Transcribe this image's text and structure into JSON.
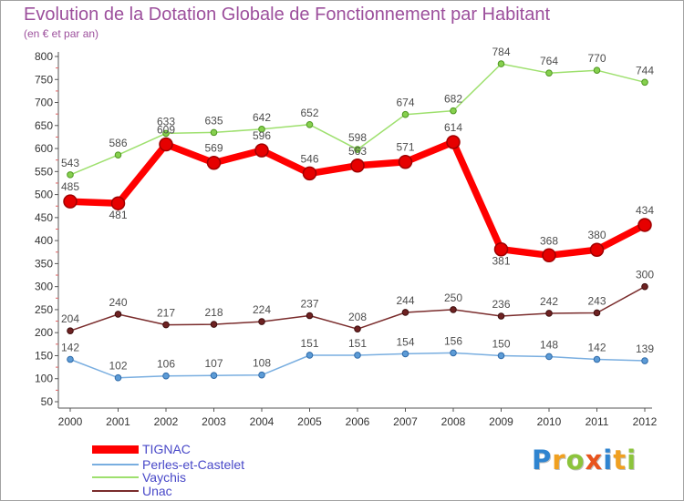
{
  "chart_data": {
    "type": "line",
    "title": "Evolution de la Dotation Globale de Fonctionnement par Habitant",
    "subtitle": "(en € et par an)",
    "xlabel": "",
    "ylabel": "",
    "x": [
      "2000",
      "2001",
      "2002",
      "2003",
      "2004",
      "2005",
      "2006",
      "2007",
      "2008",
      "2009",
      "2010",
      "2011",
      "2012"
    ],
    "ylim": [
      50,
      800
    ],
    "yticks": [
      800,
      750,
      700,
      650,
      600,
      550,
      500,
      450,
      400,
      350,
      300,
      250,
      200,
      150,
      100,
      50
    ],
    "grid": false,
    "series": [
      {
        "name": "TIGNAC",
        "highlight": true,
        "color": "#ff0000",
        "marker_color": "#e60000",
        "marker_stroke": "#a00000",
        "values": [
          485,
          481,
          609,
          569,
          596,
          546,
          563,
          571,
          614,
          381,
          368,
          380,
          434
        ]
      },
      {
        "name": "Perles-et-Castelet",
        "highlight": false,
        "color": "#79aee0",
        "marker_color": "#5c9bd6",
        "marker_stroke": "#2f6aa8",
        "values": [
          142,
          102,
          106,
          107,
          108,
          151,
          151,
          154,
          156,
          150,
          148,
          142,
          139
        ]
      },
      {
        "name": "Vaychis",
        "highlight": false,
        "color": "#9ee06e",
        "marker_color": "#86d04e",
        "marker_stroke": "#4e9620",
        "values": [
          543,
          586,
          633,
          635,
          642,
          652,
          598,
          674,
          682,
          784,
          764,
          770,
          744
        ]
      },
      {
        "name": "Unac",
        "highlight": false,
        "color": "#7a2c2c",
        "marker_color": "#6e2222",
        "marker_stroke": "#3e0e0e",
        "values": [
          204,
          240,
          217,
          218,
          224,
          237,
          208,
          244,
          250,
          236,
          242,
          243,
          300
        ]
      }
    ]
  },
  "logo": {
    "letters": [
      {
        "char": "P",
        "color": "#2f84d0"
      },
      {
        "char": "r",
        "color": "#f0a020"
      },
      {
        "char": "o",
        "color": "#8cc43c"
      },
      {
        "char": "x",
        "color": "#e8541e"
      },
      {
        "char": "i",
        "color": "#2f84d0"
      },
      {
        "char": "t",
        "color": "#f0a020"
      },
      {
        "char": "i",
        "color": "#8cc43c"
      }
    ]
  }
}
